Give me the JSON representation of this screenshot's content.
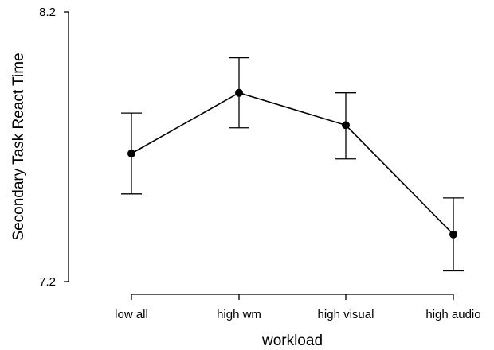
{
  "chart_data": {
    "type": "line",
    "xlabel": "workload",
    "ylabel": "Secondary Task React Time",
    "categories": [
      "low all",
      "high wm",
      "high visual",
      "high audio"
    ],
    "series": [
      {
        "values": [
          7.675,
          7.9,
          7.78,
          7.375
        ],
        "error_low": [
          7.525,
          7.77,
          7.655,
          7.24
        ],
        "error_high": [
          7.825,
          8.03,
          7.9,
          7.51
        ]
      }
    ],
    "ylim": [
      7.2,
      8.2
    ],
    "y_ticks": [
      "7.2",
      "8.2"
    ],
    "grid": false,
    "legend": "none",
    "colors": {
      "line": "#000000",
      "marker": "#000000"
    }
  }
}
